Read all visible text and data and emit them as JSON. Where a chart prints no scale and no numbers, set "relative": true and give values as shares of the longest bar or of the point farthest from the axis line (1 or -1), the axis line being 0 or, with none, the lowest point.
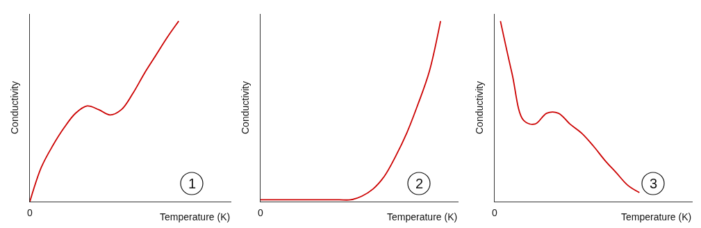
{
  "chart_data": [
    {
      "type": "line",
      "relative": true,
      "categories": [
        null,
        null,
        null,
        null,
        null,
        null,
        null,
        null,
        null,
        null,
        null,
        null,
        null,
        null,
        null,
        null,
        null,
        null
      ],
      "xlabel": "Temperature (K)",
      "ylabel": "Conductivity",
      "annotations": [
        "0",
        "1"
      ],
      "series": [
        {
          "color": "#cc0000",
          "values": [
            0,
            0.19,
            0.31,
            0.41,
            0.49,
            0.53,
            0.51,
            0.48,
            0.51,
            0.6,
            0.71,
            0.81,
            0.91,
            1,
            null,
            null,
            null,
            null
          ]
        }
      ]
    },
    {
      "type": "line",
      "relative": true,
      "categories": [
        null,
        null,
        null,
        null,
        null,
        null,
        null,
        null,
        null,
        null,
        null,
        null,
        null,
        null,
        null,
        null,
        null,
        null
      ],
      "xlabel": "Temperature (K)",
      "ylabel": "Conductivity",
      "annotations": [
        "0",
        "2"
      ],
      "series": [
        {
          "color": "#cc0000",
          "values": [
            0.01,
            0.01,
            0.01,
            0.01,
            0.01,
            0.01,
            0.01,
            0.01,
            0.01,
            0.03,
            0.07,
            0.14,
            0.25,
            0.38,
            0.54,
            0.72,
            1,
            null
          ]
        }
      ]
    },
    {
      "type": "line",
      "relative": true,
      "categories": [
        null,
        null,
        null,
        null,
        null,
        null,
        null,
        null,
        null,
        null,
        null,
        null,
        null,
        null,
        null,
        null,
        null
      ],
      "xlabel": "Temperature (K)",
      "ylabel": "Conductivity",
      "annotations": [
        "0",
        "3"
      ],
      "series": [
        {
          "color": "#cc0000",
          "values": [
            1,
            0.71,
            0.45,
            0.43,
            0.49,
            0.49,
            0.43,
            0.38,
            0.31,
            0.23,
            0.16,
            0.09,
            0.05,
            null,
            null,
            null,
            null
          ]
        }
      ]
    }
  ]
}
